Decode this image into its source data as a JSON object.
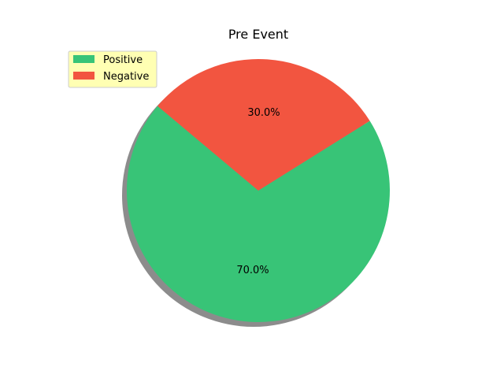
{
  "chart_data": {
    "type": "pie",
    "title": "Pre Event",
    "slices": [
      {
        "label": "Positive",
        "value": 70,
        "pct_label": "70.0%",
        "color": "#38c477"
      },
      {
        "label": "Negative",
        "value": 30,
        "pct_label": "30.0%",
        "color": "#f25540"
      }
    ],
    "shadow": true,
    "legend": {
      "placement": "upper-left",
      "background": "#ffffb3"
    }
  }
}
